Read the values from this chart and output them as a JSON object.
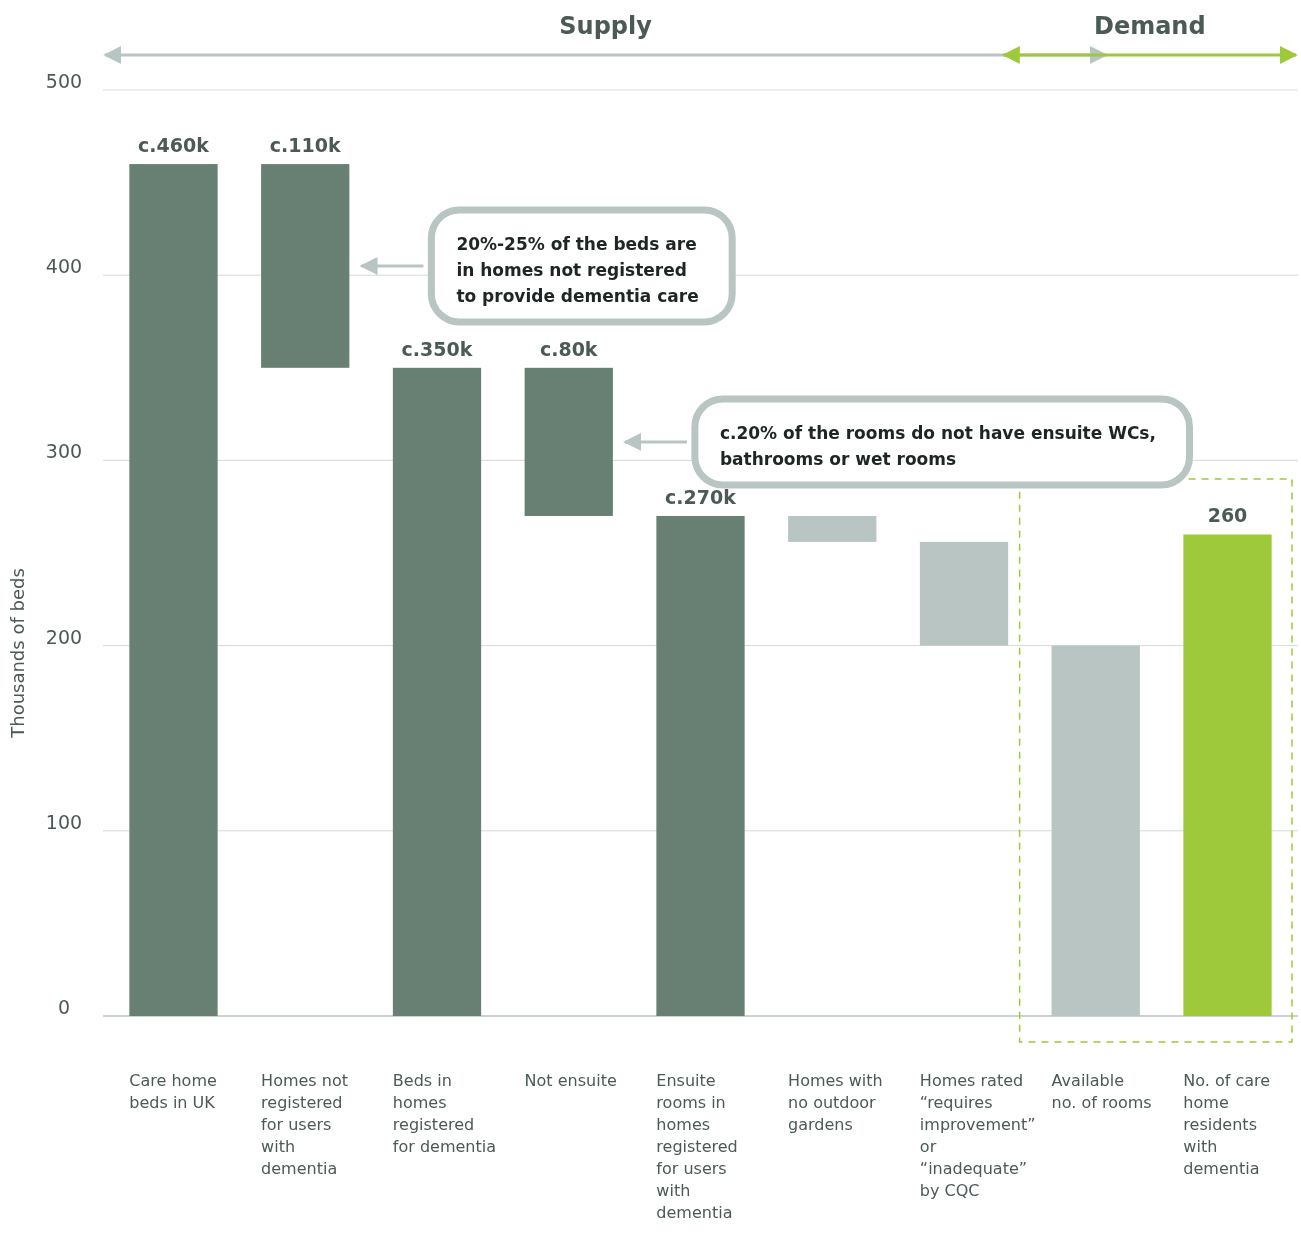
{
  "chart_data": {
    "type": "bar",
    "ylabel": "Thousands of beds",
    "categories": [
      "Care home beds in UK",
      "Homes not registered for users with dementia",
      "Beds in homes registered for dementia",
      "Not ensuite",
      "Ensuite rooms in homes registered for users with dementia",
      "Homes with no outdoor gardens",
      "Homes rated “requires improvement” or “inadequate” by CQC",
      "Available no. of rooms",
      "No. of care home residents with dementia"
    ],
    "values": [
      460,
      110,
      350,
      80,
      270,
      14,
      56,
      200,
      260
    ],
    "base": [
      0,
      350,
      0,
      270,
      0,
      256,
      200,
      0,
      0
    ],
    "colors": [
      "#687f74",
      "#687f74",
      "#687f74",
      "#687f74",
      "#687f74",
      "#b8c5c3",
      "#b8c5c3",
      "#b8c5c3",
      "#9dc93b"
    ],
    "value_labels": [
      "c.460k",
      "c.110k",
      "c.350k",
      "c.80k",
      "c.270k",
      null,
      null,
      null,
      "260"
    ],
    "ylim": [
      0,
      500
    ],
    "yticks": [
      0,
      100,
      200,
      300,
      400,
      500
    ],
    "grid": "y",
    "annotations": [
      "Supply",
      "Demand",
      "20%-25% of the beds are in homes not registered to provide dementia care",
      "c.20% of the rooms do not have ensuite WCs, bathrooms or wet rooms"
    ]
  }
}
